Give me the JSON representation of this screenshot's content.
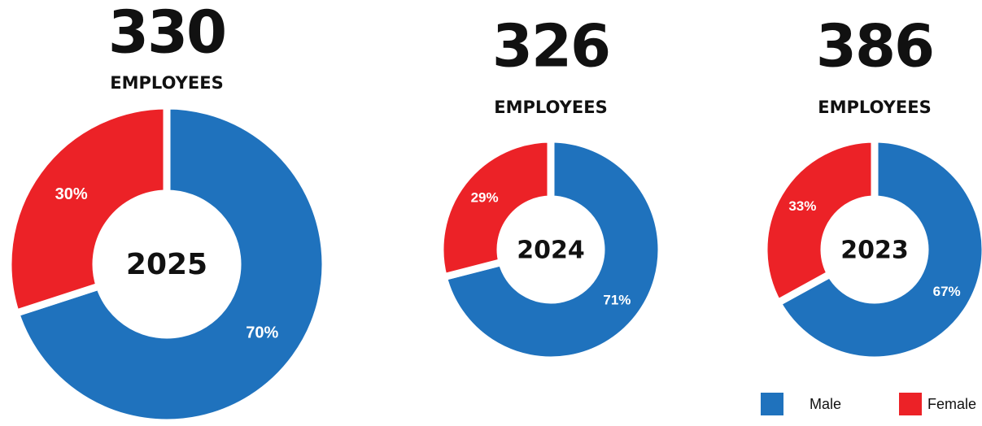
{
  "chart_data": [
    {
      "type": "pie",
      "title": "330",
      "subtitle": "EMPLOYEES",
      "center_label": "2025",
      "categories": [
        "Male",
        "Female"
      ],
      "values": [
        70,
        30
      ],
      "value_labels": [
        "70%",
        "30%"
      ],
      "colors": [
        "#1f72bd",
        "#ec2227"
      ]
    },
    {
      "type": "pie",
      "title": "326",
      "subtitle": "EMPLOYEES",
      "center_label": "2024",
      "categories": [
        "Male",
        "Female"
      ],
      "values": [
        71,
        29
      ],
      "value_labels": [
        "71%",
        "29%"
      ],
      "colors": [
        "#1f72bd",
        "#ec2227"
      ]
    },
    {
      "type": "pie",
      "title": "386",
      "subtitle": "EMPLOYEES",
      "center_label": "2023",
      "categories": [
        "Male",
        "Female"
      ],
      "values": [
        67,
        33
      ],
      "value_labels": [
        "67%",
        "33%"
      ],
      "colors": [
        "#1f72bd",
        "#ec2227"
      ],
      "legend": "bottom-right"
    }
  ]
}
